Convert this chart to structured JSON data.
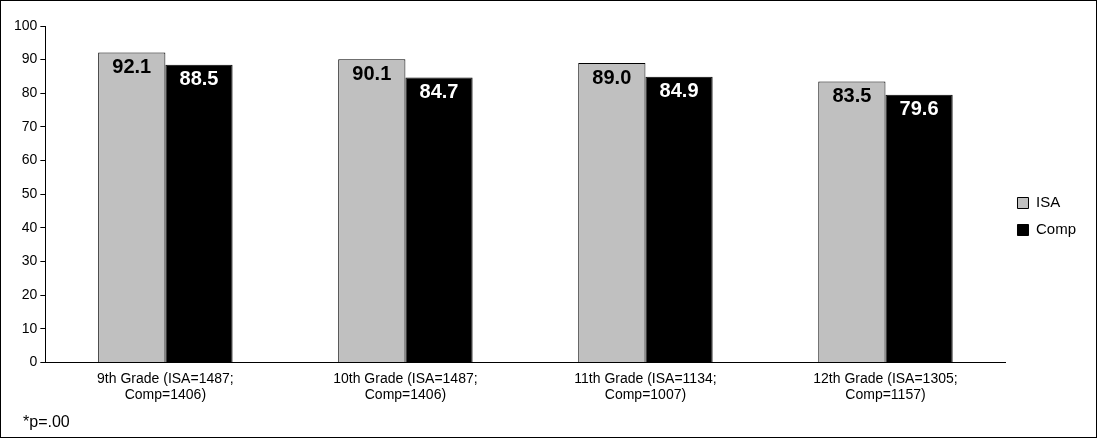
{
  "chart_data": {
    "type": "bar",
    "categories": [
      "9th Grade (ISA=1487; Comp=1406)",
      "10th Grade (ISA=1487; Comp=1406)",
      "11th Grade (ISA=1134; Comp=1007)",
      "12th Grade (ISA=1305; Comp=1157)"
    ],
    "series": [
      {
        "name": "ISA",
        "color": "#c0c0c0",
        "values": [
          92.1,
          90.1,
          89.0,
          83.5
        ],
        "value_labels": [
          "92.1",
          "90.1",
          "89.0",
          "83.5"
        ]
      },
      {
        "name": "Comp",
        "color": "#000000",
        "values": [
          88.5,
          84.7,
          84.9,
          79.6
        ],
        "value_labels": [
          "88.5",
          "84.7",
          "84.9",
          "79.6"
        ]
      }
    ],
    "ylim": [
      0,
      100
    ],
    "yticks": [
      0,
      10,
      20,
      30,
      40,
      50,
      60,
      70,
      80,
      90,
      100
    ],
    "grid": false,
    "legend": "right",
    "annotations": [
      "*p=.00"
    ]
  }
}
